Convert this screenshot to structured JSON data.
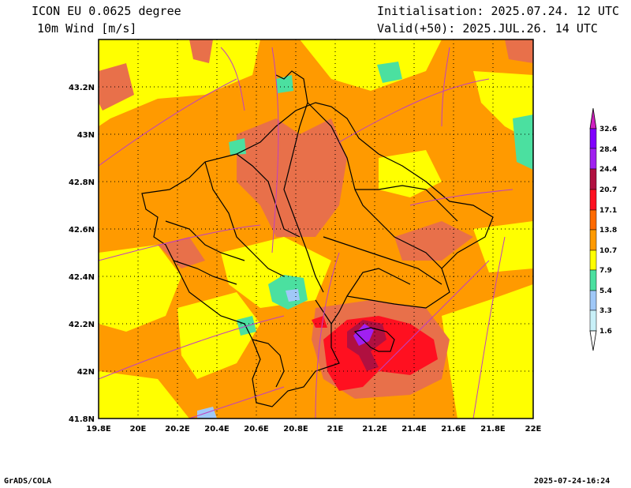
{
  "header": {
    "model": "ICON EU 0.0625 degree",
    "variable": "10m Wind [m/s]",
    "init": "Initialisation: 2025.07.24. 12 UTC",
    "valid": "Valid(+50): 2025.JUL.26. 14 UTC"
  },
  "footer": {
    "software": "GrADS/COLA",
    "timestamp": "2025-07-24-16:24"
  },
  "map": {
    "lon_ticks": [
      "19.8E",
      "20E",
      "20.2E",
      "20.4E",
      "20.6E",
      "20.8E",
      "21E",
      "21.2E",
      "21.4E",
      "21.6E",
      "21.8E",
      "22E"
    ],
    "lat_ticks": [
      "41.8N",
      "42N",
      "42.2N",
      "42.4N",
      "42.6N",
      "42.8N",
      "43N",
      "43.2N"
    ],
    "lon_range": [
      19.8,
      22.0
    ],
    "lat_range": [
      41.8,
      43.4
    ]
  },
  "colorbar": {
    "labels": [
      "1.6",
      "3.3",
      "5.4",
      "7.9",
      "10.7",
      "13.8",
      "17.1",
      "20.7",
      "24.4",
      "28.4",
      "32.6"
    ],
    "colors": [
      "#c8f0f8",
      "#a0c8f8",
      "#4be0a0",
      "#ffff00",
      "#ff9a00",
      "#e8704a",
      "#ff1020",
      "#b01040",
      "#a020f0",
      "#8000ff",
      "#d020c0"
    ]
  }
}
